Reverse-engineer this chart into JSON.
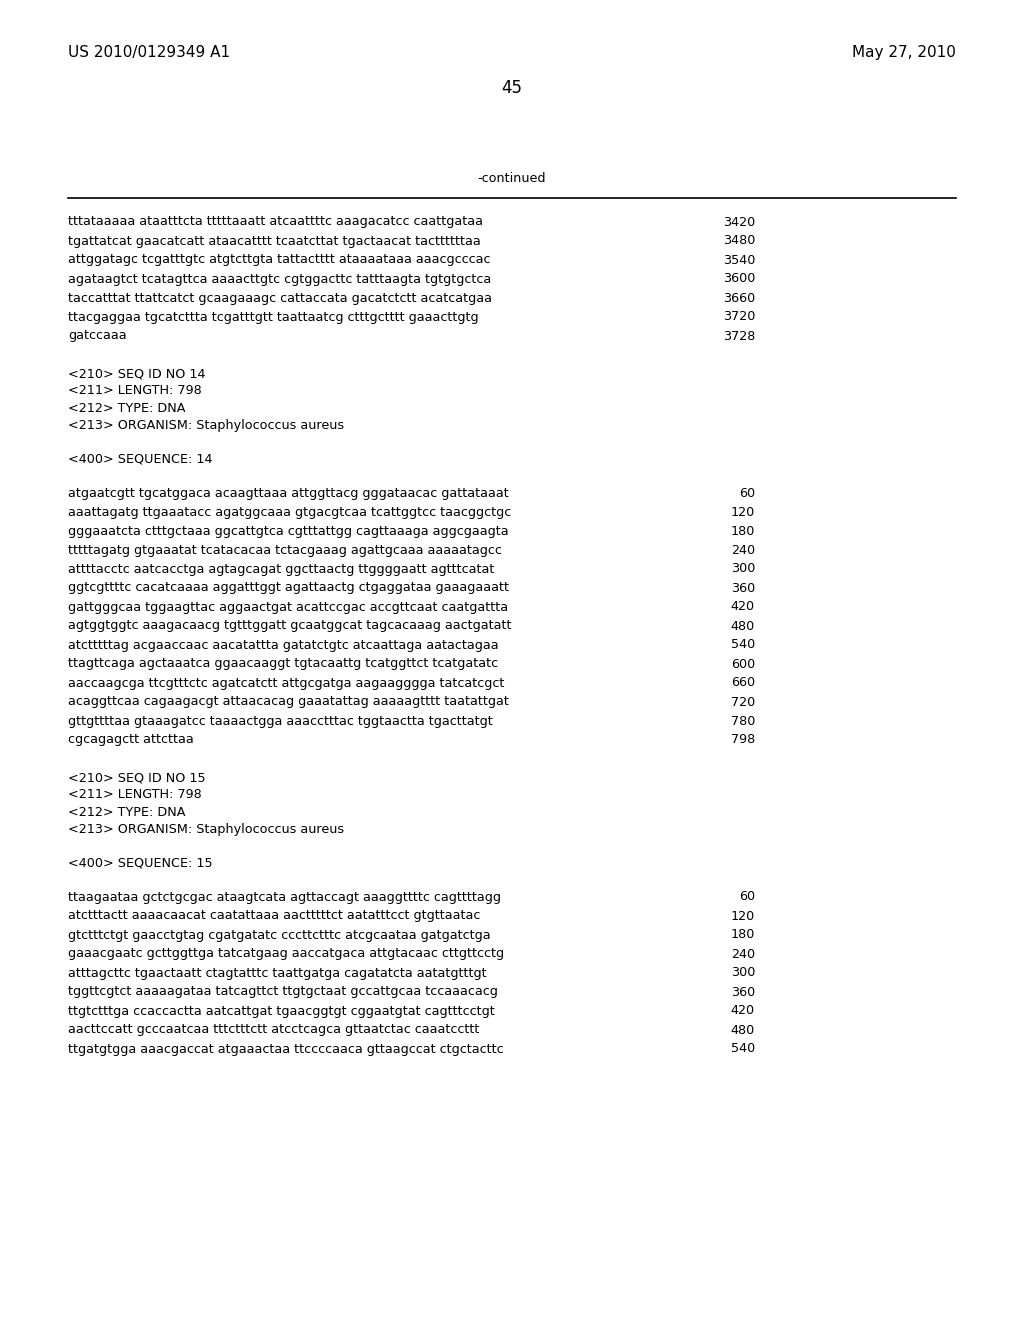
{
  "background_color": "#ffffff",
  "header_left": "US 2010/0129349 A1",
  "header_right": "May 27, 2010",
  "page_number": "45",
  "continued_label": "-continued",
  "font_size_header": 11,
  "font_size_body": 9.2,
  "font_size_page_num": 12,
  "monospace_font": "Courier New",
  "serif_font": "Times New Roman",
  "seq_lines_1": [
    {
      "text": "tttataaaaa ataatttcta tttttaaatt atcaattttc aaagacatcc caattgataa",
      "num": "3420"
    },
    {
      "text": "tgattatcat gaacatcatt ataacatttt tcaatcttat tgactaacat tacttttttaa",
      "num": "3480"
    },
    {
      "text": "attggatagc tcgatttgtc atgtcttgta tattactttt ataaaataaa aaacgcccac",
      "num": "3540"
    },
    {
      "text": "agataagtct tcatagttca aaaacttgtc cgtggacttc tatttaagta tgtgtgctca",
      "num": "3600"
    },
    {
      "text": "taccatttat ttattcatct gcaagaaagc cattaccata gacatctctt acatcatgaa",
      "num": "3660"
    },
    {
      "text": "ttacgaggaa tgcatcttta tcgatttgtt taattaatcg ctttgctttt gaaacttgtg",
      "num": "3720"
    },
    {
      "text": "gatccaaa",
      "num": "3728"
    }
  ],
  "meta_14": [
    "<210> SEQ ID NO 14",
    "<211> LENGTH: 798",
    "<212> TYPE: DNA",
    "<213> ORGANISM: Staphylococcus aureus"
  ],
  "seq400_14": "<400> SEQUENCE: 14",
  "seq_lines_14": [
    {
      "text": "atgaatcgtt tgcatggaca acaagttaaa attggttacg gggataacac gattataaat",
      "num": "60"
    },
    {
      "text": "aaattagatg ttgaaatacc agatggcaaa gtgacgtcaa tcattggtcc taacggctgc",
      "num": "120"
    },
    {
      "text": "gggaaatcta ctttgctaaa ggcattgtca cgtttattgg cagttaaaga aggcgaagta",
      "num": "180"
    },
    {
      "text": "tttttagatg gtgaaatat tcatacacaa tctacgaaag agattgcaaa aaaaatagcc",
      "num": "240"
    },
    {
      "text": "attttacctc aatcacctga agtagcagat ggcttaactg ttggggaatt agtttcatat",
      "num": "300"
    },
    {
      "text": "ggtcgttttc cacatcaaaa aggatttggt agattaactg ctgaggataa gaaagaaatt",
      "num": "360"
    },
    {
      "text": "gattgggcaa tggaagttac aggaactgat acattccgac accgttcaat caatgattta",
      "num": "420"
    },
    {
      "text": "agtggtggtc aaagacaacg tgtttggatt gcaatggcat tagcacaaag aactgatatt",
      "num": "480"
    },
    {
      "text": "atctttttag acgaaccaac aacatattta gatatctgtc atcaattaga aatactagaa",
      "num": "540"
    },
    {
      "text": "ttagttcaga agctaaatca ggaacaaggt tgtacaattg tcatggttct tcatgatatc",
      "num": "600"
    },
    {
      "text": "aaccaagcga ttcgtttctc agatcatctt attgcgatga aagaagggga tatcatcgct",
      "num": "660"
    },
    {
      "text": "acaggttcaa cagaagacgt attaacacag gaaatattag aaaaagtttt taatattgat",
      "num": "720"
    },
    {
      "text": "gttgttttaa gtaaagatcc taaaactgga aaacctttac tggtaactta tgacttatgt",
      "num": "780"
    },
    {
      "text": "cgcagagctt attcttaa",
      "num": "798"
    }
  ],
  "meta_15": [
    "<210> SEQ ID NO 15",
    "<211> LENGTH: 798",
    "<212> TYPE: DNA",
    "<213> ORGANISM: Staphylococcus aureus"
  ],
  "seq400_15": "<400> SEQUENCE: 15",
  "seq_lines_15": [
    {
      "text": "ttaagaataa gctctgcgac ataagtcata agttaccagt aaaggttttc cagttttagg",
      "num": "60"
    },
    {
      "text": "atctttactt aaaacaacat caatattaaa aactttttct aatatttcct gtgttaatac",
      "num": "120"
    },
    {
      "text": "gtctttctgt gaacctgtag cgatgatatc cccttctttc atcgcaataa gatgatctga",
      "num": "180"
    },
    {
      "text": "gaaacgaatc gcttggttga tatcatgaag aaccatgaca attgtacaac cttgttcctg",
      "num": "240"
    },
    {
      "text": "atttagcttc tgaactaatt ctagtatttc taattgatga cagatatcta aatatgtttgt",
      "num": "300"
    },
    {
      "text": "tggttcgtct aaaaagataa tatcagttct ttgtgctaat gccattgcaa tccaaacacg",
      "num": "360"
    },
    {
      "text": "ttgtctttga ccaccactta aatcattgat tgaacggtgt cggaatgtat cagtttcctgt",
      "num": "420"
    },
    {
      "text": "aacttccatt gcccaatcaa tttctttctt atcctcagca gttaatctac caaatccttt",
      "num": "480"
    },
    {
      "text": "ttgatgtgga aaacgaccat atgaaactaa ttccccaaca gttaagccat ctgctacttc",
      "num": "540"
    }
  ]
}
